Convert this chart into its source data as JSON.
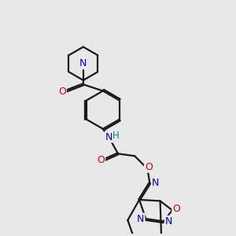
{
  "bg_color": "#e8e8e8",
  "bond_color": "#1a1a1a",
  "N_color": "#0000cc",
  "O_color": "#cc0000",
  "H_color": "#008080",
  "line_width": 1.6,
  "figsize": [
    3.0,
    3.0
  ],
  "dpi": 100,
  "xlim": [
    0,
    10
  ],
  "ylim": [
    0,
    10
  ]
}
